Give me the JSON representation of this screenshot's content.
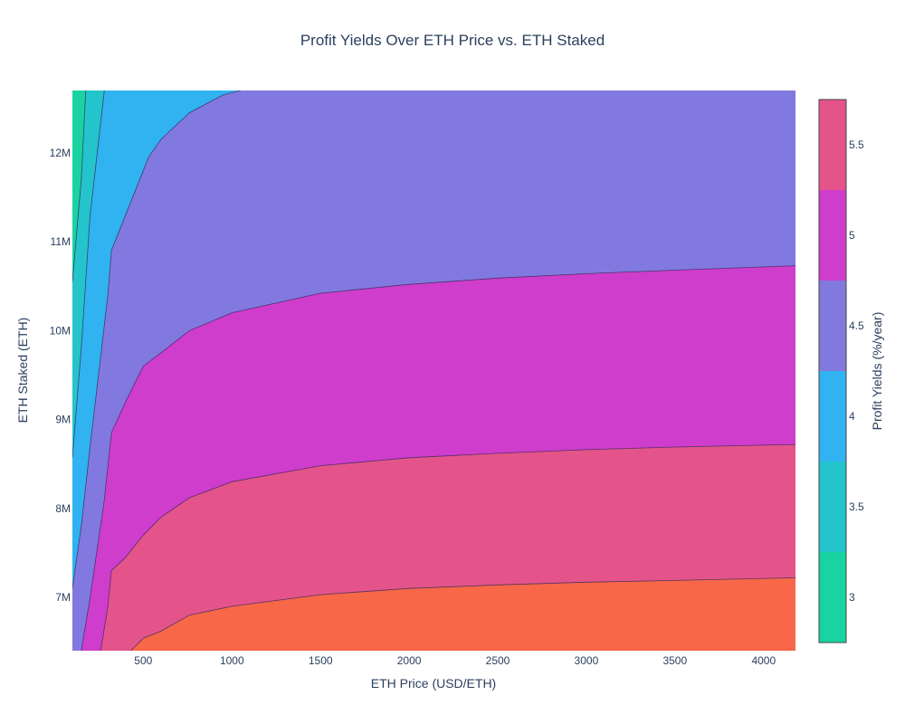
{
  "chart_data": {
    "type": "contour",
    "title": "Profit Yields Over ETH Price vs. ETH Staked",
    "xlabel": "ETH Price (USD/ETH)",
    "ylabel": "ETH Staked (ETH)",
    "colorbar_title": "Profit Yields (%/year)",
    "xlim": [
      100,
      4180
    ],
    "ylim": [
      6400000,
      12700000
    ],
    "x_ticks": [
      {
        "value": 500,
        "label": "500"
      },
      {
        "value": 1000,
        "label": "1000"
      },
      {
        "value": 1500,
        "label": "1500"
      },
      {
        "value": 2000,
        "label": "2000"
      },
      {
        "value": 2500,
        "label": "2500"
      },
      {
        "value": 3000,
        "label": "3000"
      },
      {
        "value": 3500,
        "label": "3500"
      },
      {
        "value": 4000,
        "label": "4000"
      }
    ],
    "y_ticks": [
      {
        "value": 7000000,
        "label": "7M"
      },
      {
        "value": 8000000,
        "label": "8M"
      },
      {
        "value": 9000000,
        "label": "9M"
      },
      {
        "value": 10000000,
        "label": "10M"
      },
      {
        "value": 11000000,
        "label": "11M"
      },
      {
        "value": 12000000,
        "label": "12M"
      }
    ],
    "colorbar": {
      "range": [
        2.75,
        5.75
      ],
      "ticks": [
        {
          "value": 3,
          "label": "3"
        },
        {
          "value": 3.5,
          "label": "3.5"
        },
        {
          "value": 4,
          "label": "4"
        },
        {
          "value": 4.5,
          "label": "4.5"
        },
        {
          "value": 5,
          "label": "5"
        },
        {
          "value": 5.5,
          "label": "5.5"
        }
      ],
      "bands": [
        {
          "from": 2.75,
          "to": 3.25,
          "color": "#19d3a2"
        },
        {
          "from": 3.25,
          "to": 3.75,
          "color": "#23c4cb"
        },
        {
          "from": 3.75,
          "to": 4.25,
          "color": "#30b3f0"
        },
        {
          "from": 4.25,
          "to": 4.75,
          "color": "#8279e0"
        },
        {
          "from": 4.75,
          "to": 5.25,
          "color": "#cf3dcc"
        },
        {
          "from": 5.25,
          "to": 5.75,
          "color": "#e4548a"
        },
        {
          "from": 5.75,
          "to": 6.25,
          "color": "#f76748"
        }
      ]
    },
    "contour_levels": [
      {
        "level": 3.25,
        "points": [
          [
            100,
            10550000
          ],
          [
            150,
            11700000
          ],
          [
            175,
            12700000
          ]
        ]
      },
      {
        "level": 3.75,
        "points": [
          [
            100,
            8570000
          ],
          [
            150,
            9800000
          ],
          [
            200,
            11300000
          ],
          [
            280,
            12700000
          ]
        ]
      },
      {
        "level": 4.25,
        "points": [
          [
            100,
            7100000
          ],
          [
            150,
            7800000
          ],
          [
            200,
            8700000
          ],
          [
            300,
            10400000
          ],
          [
            320,
            10900000
          ],
          [
            420,
            11400000
          ],
          [
            530,
            11950000
          ],
          [
            600,
            12150000
          ],
          [
            760,
            12450000
          ],
          [
            950,
            12650000
          ],
          [
            1050,
            12700000
          ]
        ]
      },
      {
        "level": 4.75,
        "points": [
          [
            150,
            6400000
          ],
          [
            200,
            7000000
          ],
          [
            280,
            8100000
          ],
          [
            320,
            8850000
          ],
          [
            400,
            9200000
          ],
          [
            500,
            9600000
          ],
          [
            600,
            9750000
          ],
          [
            760,
            10000000
          ],
          [
            1000,
            10200000
          ],
          [
            1500,
            10420000
          ],
          [
            2000,
            10520000
          ],
          [
            2500,
            10590000
          ],
          [
            3000,
            10640000
          ],
          [
            3500,
            10680000
          ],
          [
            4180,
            10730000
          ]
        ]
      },
      {
        "level": 5.25,
        "points": [
          [
            260,
            6400000
          ],
          [
            300,
            6900000
          ],
          [
            320,
            7300000
          ],
          [
            400,
            7450000
          ],
          [
            500,
            7700000
          ],
          [
            600,
            7900000
          ],
          [
            760,
            8120000
          ],
          [
            1000,
            8300000
          ],
          [
            1500,
            8480000
          ],
          [
            2000,
            8570000
          ],
          [
            2500,
            8620000
          ],
          [
            3000,
            8660000
          ],
          [
            3500,
            8690000
          ],
          [
            4180,
            8720000
          ]
        ]
      },
      {
        "level": 5.75,
        "points": [
          [
            430,
            6400000
          ],
          [
            500,
            6540000
          ],
          [
            600,
            6620000
          ],
          [
            760,
            6800000
          ],
          [
            1000,
            6900000
          ],
          [
            1500,
            7030000
          ],
          [
            2000,
            7100000
          ],
          [
            2500,
            7140000
          ],
          [
            3000,
            7170000
          ],
          [
            3500,
            7190000
          ],
          [
            4180,
            7220000
          ]
        ]
      }
    ]
  }
}
